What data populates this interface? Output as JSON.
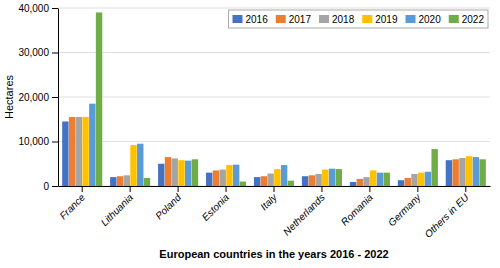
{
  "chart_data": {
    "type": "bar",
    "categories": [
      "France",
      "Lithuania",
      "Poland",
      "Estonia",
      "Italy",
      "Netherlands",
      "Romania",
      "Germany",
      "Others in EU"
    ],
    "series": [
      {
        "name": "2016",
        "color": "#4472c4",
        "values": [
          14500,
          2000,
          5000,
          3000,
          2000,
          2200,
          900,
          1300,
          5800
        ]
      },
      {
        "name": "2017",
        "color": "#ed7d31",
        "values": [
          15500,
          2200,
          6500,
          3500,
          2200,
          2400,
          1600,
          1800,
          6000
        ]
      },
      {
        "name": "2018",
        "color": "#a5a5a5",
        "values": [
          15500,
          2400,
          6200,
          3700,
          2800,
          2700,
          2000,
          2700,
          6300
        ]
      },
      {
        "name": "2019",
        "color": "#ffc000",
        "values": [
          15500,
          9200,
          5800,
          4700,
          3800,
          3700,
          3500,
          3000,
          6700
        ]
      },
      {
        "name": "2020",
        "color": "#5b9bd5",
        "values": [
          18500,
          9500,
          5700,
          4800,
          4700,
          3900,
          3000,
          3200,
          6500
        ]
      },
      {
        "name": "2022",
        "color": "#70ad47",
        "values": [
          39000,
          1800,
          6000,
          1000,
          1200,
          3800,
          3000,
          8300,
          6000
        ]
      }
    ],
    "xlabel": "European countries in the years 2016 - 2022",
    "ylabel": "Hectares",
    "ylim": [
      0,
      40000
    ],
    "yticks": [
      0,
      {
        "value": 10000,
        "label": "10,000"
      },
      {
        "value": 20000,
        "label": "20,000"
      },
      {
        "value": 30000,
        "label": "30,000"
      },
      {
        "value": 40000,
        "label": "40,000"
      }
    ],
    "grid": true,
    "legend": "upper right"
  }
}
